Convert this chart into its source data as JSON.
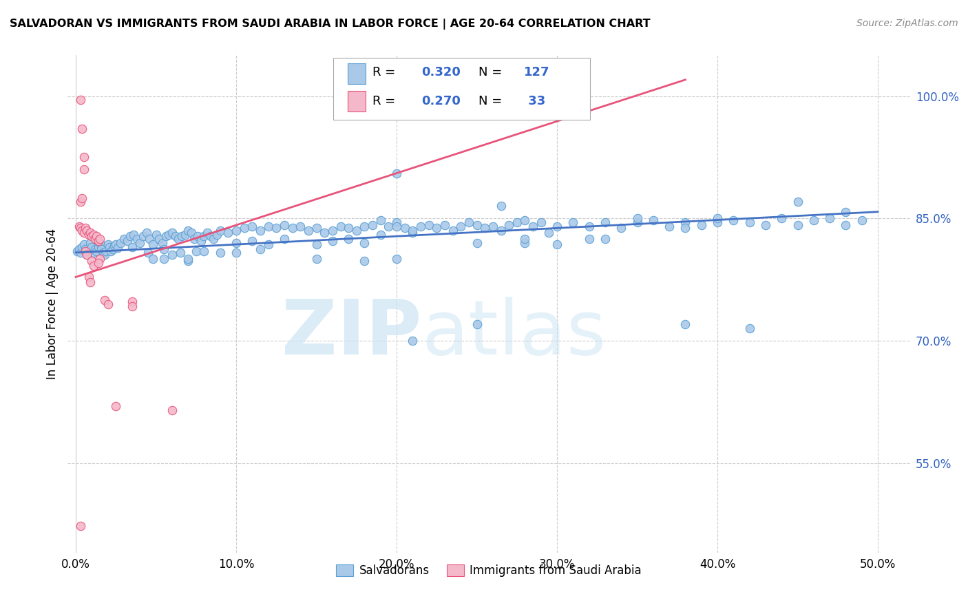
{
  "title": "SALVADORAN VS IMMIGRANTS FROM SAUDI ARABIA IN LABOR FORCE | AGE 20-64 CORRELATION CHART",
  "source": "Source: ZipAtlas.com",
  "xlabel_ticks": [
    "0.0%",
    "10.0%",
    "20.0%",
    "30.0%",
    "40.0%",
    "50.0%"
  ],
  "xlabel_vals": [
    0.0,
    0.1,
    0.2,
    0.3,
    0.4,
    0.5
  ],
  "ylabel": "In Labor Force | Age 20-64",
  "xlim": [
    -0.005,
    0.52
  ],
  "ylim": [
    0.44,
    1.05
  ],
  "blue_color": "#aac9e8",
  "pink_color": "#f4b8cb",
  "blue_edge_color": "#5a9fd4",
  "pink_edge_color": "#e8537a",
  "blue_line_color": "#4472c4",
  "pink_line_color": "#e8537a",
  "r_blue": "0.320",
  "n_blue": "127",
  "r_pink": "0.270",
  "n_pink": " 33",
  "watermark_zip": "ZIP",
  "watermark_atlas": "atlas",
  "blue_scatter": [
    [
      0.001,
      0.81
    ],
    [
      0.002,
      0.812
    ],
    [
      0.003,
      0.808
    ],
    [
      0.004,
      0.815
    ],
    [
      0.005,
      0.818
    ],
    [
      0.006,
      0.812
    ],
    [
      0.007,
      0.805
    ],
    [
      0.008,
      0.81
    ],
    [
      0.009,
      0.82
    ],
    [
      0.01,
      0.815
    ],
    [
      0.011,
      0.808
    ],
    [
      0.012,
      0.812
    ],
    [
      0.013,
      0.81
    ],
    [
      0.014,
      0.815
    ],
    [
      0.015,
      0.82
    ],
    [
      0.016,
      0.812
    ],
    [
      0.017,
      0.808
    ],
    [
      0.018,
      0.805
    ],
    [
      0.019,
      0.81
    ],
    [
      0.02,
      0.818
    ],
    [
      0.021,
      0.815
    ],
    [
      0.022,
      0.81
    ],
    [
      0.023,
      0.812
    ],
    [
      0.024,
      0.816
    ],
    [
      0.025,
      0.818
    ],
    [
      0.026,
      0.814
    ],
    [
      0.028,
      0.82
    ],
    [
      0.03,
      0.825
    ],
    [
      0.032,
      0.822
    ],
    [
      0.034,
      0.828
    ],
    [
      0.036,
      0.83
    ],
    [
      0.038,
      0.825
    ],
    [
      0.04,
      0.82
    ],
    [
      0.042,
      0.828
    ],
    [
      0.044,
      0.832
    ],
    [
      0.046,
      0.825
    ],
    [
      0.048,
      0.818
    ],
    [
      0.05,
      0.83
    ],
    [
      0.052,
      0.825
    ],
    [
      0.054,
      0.82
    ],
    [
      0.056,
      0.828
    ],
    [
      0.058,
      0.83
    ],
    [
      0.06,
      0.832
    ],
    [
      0.062,
      0.828
    ],
    [
      0.064,
      0.825
    ],
    [
      0.066,
      0.828
    ],
    [
      0.068,
      0.83
    ],
    [
      0.07,
      0.835
    ],
    [
      0.072,
      0.832
    ],
    [
      0.074,
      0.825
    ],
    [
      0.076,
      0.828
    ],
    [
      0.078,
      0.822
    ],
    [
      0.08,
      0.828
    ],
    [
      0.082,
      0.832
    ],
    [
      0.084,
      0.828
    ],
    [
      0.086,
      0.825
    ],
    [
      0.088,
      0.83
    ],
    [
      0.09,
      0.835
    ],
    [
      0.095,
      0.832
    ],
    [
      0.1,
      0.835
    ],
    [
      0.105,
      0.838
    ],
    [
      0.11,
      0.84
    ],
    [
      0.115,
      0.835
    ],
    [
      0.12,
      0.84
    ],
    [
      0.125,
      0.838
    ],
    [
      0.13,
      0.842
    ],
    [
      0.135,
      0.838
    ],
    [
      0.14,
      0.84
    ],
    [
      0.145,
      0.835
    ],
    [
      0.15,
      0.838
    ],
    [
      0.155,
      0.832
    ],
    [
      0.16,
      0.835
    ],
    [
      0.165,
      0.84
    ],
    [
      0.17,
      0.838
    ],
    [
      0.175,
      0.835
    ],
    [
      0.18,
      0.84
    ],
    [
      0.185,
      0.842
    ],
    [
      0.19,
      0.848
    ],
    [
      0.195,
      0.84
    ],
    [
      0.2,
      0.845
    ],
    [
      0.205,
      0.838
    ],
    [
      0.21,
      0.832
    ],
    [
      0.215,
      0.84
    ],
    [
      0.22,
      0.842
    ],
    [
      0.225,
      0.838
    ],
    [
      0.23,
      0.842
    ],
    [
      0.235,
      0.835
    ],
    [
      0.24,
      0.84
    ],
    [
      0.245,
      0.845
    ],
    [
      0.25,
      0.842
    ],
    [
      0.255,
      0.838
    ],
    [
      0.26,
      0.84
    ],
    [
      0.265,
      0.835
    ],
    [
      0.27,
      0.842
    ],
    [
      0.275,
      0.845
    ],
    [
      0.28,
      0.848
    ],
    [
      0.285,
      0.84
    ],
    [
      0.29,
      0.845
    ],
    [
      0.295,
      0.832
    ],
    [
      0.3,
      0.84
    ],
    [
      0.31,
      0.845
    ],
    [
      0.32,
      0.84
    ],
    [
      0.33,
      0.845
    ],
    [
      0.34,
      0.838
    ],
    [
      0.35,
      0.845
    ],
    [
      0.36,
      0.848
    ],
    [
      0.37,
      0.84
    ],
    [
      0.38,
      0.845
    ],
    [
      0.39,
      0.842
    ],
    [
      0.4,
      0.845
    ],
    [
      0.41,
      0.848
    ],
    [
      0.42,
      0.845
    ],
    [
      0.43,
      0.842
    ],
    [
      0.44,
      0.85
    ],
    [
      0.45,
      0.842
    ],
    [
      0.46,
      0.848
    ],
    [
      0.47,
      0.85
    ],
    [
      0.48,
      0.842
    ],
    [
      0.49,
      0.848
    ],
    [
      0.035,
      0.815
    ],
    [
      0.045,
      0.808
    ],
    [
      0.055,
      0.812
    ],
    [
      0.065,
      0.808
    ],
    [
      0.075,
      0.81
    ],
    [
      0.048,
      0.8
    ],
    [
      0.055,
      0.8
    ],
    [
      0.07,
      0.798
    ],
    [
      0.08,
      0.81
    ],
    [
      0.09,
      0.808
    ],
    [
      0.1,
      0.82
    ],
    [
      0.11,
      0.822
    ],
    [
      0.12,
      0.818
    ],
    [
      0.13,
      0.825
    ],
    [
      0.1,
      0.808
    ],
    [
      0.115,
      0.812
    ],
    [
      0.15,
      0.818
    ],
    [
      0.16,
      0.822
    ],
    [
      0.17,
      0.825
    ],
    [
      0.18,
      0.82
    ],
    [
      0.19,
      0.83
    ],
    [
      0.2,
      0.84
    ],
    [
      0.21,
      0.835
    ],
    [
      0.06,
      0.805
    ],
    [
      0.07,
      0.8
    ],
    [
      0.2,
      0.905
    ],
    [
      0.265,
      0.865
    ],
    [
      0.35,
      0.85
    ],
    [
      0.4,
      0.85
    ],
    [
      0.38,
      0.838
    ],
    [
      0.32,
      0.825
    ],
    [
      0.28,
      0.82
    ],
    [
      0.15,
      0.8
    ],
    [
      0.18,
      0.798
    ],
    [
      0.2,
      0.8
    ],
    [
      0.25,
      0.82
    ],
    [
      0.28,
      0.825
    ],
    [
      0.3,
      0.818
    ],
    [
      0.33,
      0.825
    ],
    [
      0.25,
      0.72
    ],
    [
      0.21,
      0.7
    ],
    [
      0.38,
      0.72
    ],
    [
      0.42,
      0.715
    ],
    [
      0.45,
      0.87
    ],
    [
      0.48,
      0.858
    ]
  ],
  "pink_scatter": [
    [
      0.002,
      0.84
    ],
    [
      0.003,
      0.838
    ],
    [
      0.004,
      0.835
    ],
    [
      0.005,
      0.832
    ],
    [
      0.006,
      0.838
    ],
    [
      0.007,
      0.835
    ],
    [
      0.008,
      0.83
    ],
    [
      0.009,
      0.832
    ],
    [
      0.01,
      0.828
    ],
    [
      0.011,
      0.83
    ],
    [
      0.012,
      0.825
    ],
    [
      0.013,
      0.828
    ],
    [
      0.014,
      0.822
    ],
    [
      0.015,
      0.825
    ],
    [
      0.003,
      0.87
    ],
    [
      0.004,
      0.875
    ],
    [
      0.005,
      0.91
    ],
    [
      0.005,
      0.925
    ],
    [
      0.004,
      0.96
    ],
    [
      0.003,
      0.995
    ],
    [
      0.006,
      0.81
    ],
    [
      0.007,
      0.805
    ],
    [
      0.01,
      0.798
    ],
    [
      0.011,
      0.792
    ],
    [
      0.015,
      0.8
    ],
    [
      0.014,
      0.795
    ],
    [
      0.008,
      0.778
    ],
    [
      0.009,
      0.772
    ],
    [
      0.018,
      0.75
    ],
    [
      0.02,
      0.745
    ],
    [
      0.035,
      0.748
    ],
    [
      0.035,
      0.742
    ],
    [
      0.025,
      0.62
    ],
    [
      0.06,
      0.615
    ],
    [
      0.003,
      0.473
    ]
  ],
  "blue_line_x": [
    0.0,
    0.5
  ],
  "blue_line_y": [
    0.808,
    0.858
  ],
  "pink_line_x": [
    0.0,
    0.38
  ],
  "pink_line_y": [
    0.778,
    1.02
  ]
}
